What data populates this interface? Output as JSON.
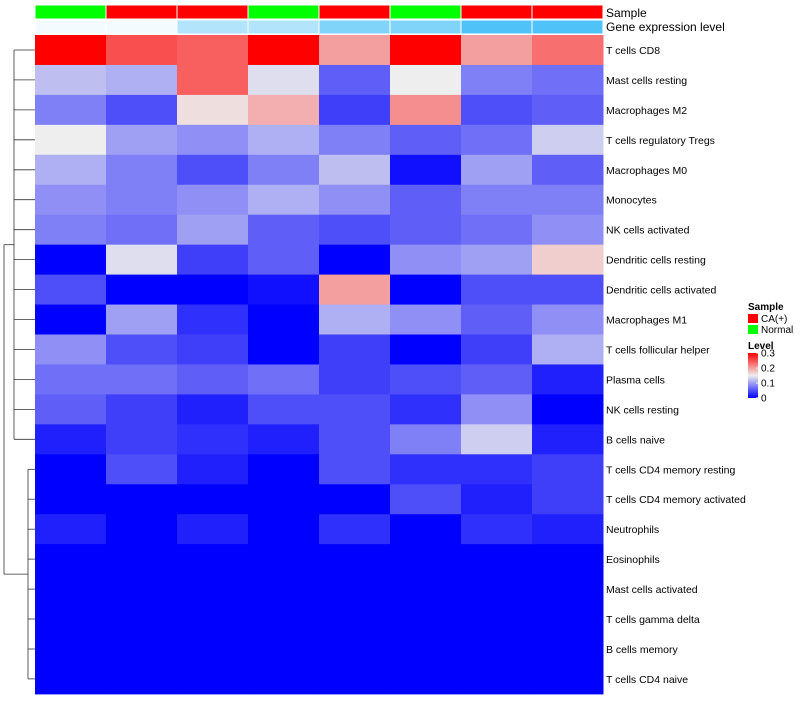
{
  "chart_data": {
    "type": "heatmap",
    "title": "",
    "annotation_tracks": [
      {
        "name": "Sample",
        "values": [
          "Normal",
          "CA(+)",
          "CA(+)",
          "Normal",
          "CA(+)",
          "Normal",
          "CA(+)",
          "CA(+)"
        ],
        "colors": {
          "CA(+)": "#ff0000",
          "Normal": "#00ff00"
        }
      },
      {
        "name": "Gene expression level",
        "values": [
          0.0,
          0.0,
          0.4,
          0.4,
          0.7,
          0.7,
          1.0,
          1.0
        ],
        "color_low": "#f4fbfe",
        "color_high": "#4fc3f7"
      }
    ],
    "rows": [
      "T cells CD8",
      "Mast cells resting",
      "Macrophages M2",
      "T cells regulatory  Tregs",
      "Macrophages M0",
      "Monocytes",
      "NK cells activated",
      "Dendritic cells resting",
      "Dendritic cells activated",
      "Macrophages M1",
      "T cells follicular helper",
      "Plasma cells",
      "NK cells resting",
      "B cells naive",
      "T cells CD4 memory resting",
      "T cells CD4 memory activated",
      "Neutrophils",
      "Eosinophils",
      "Mast cells activated",
      "T cells gamma delta",
      "B cells memory",
      "T cells CD4 naive"
    ],
    "columns": 8,
    "values": [
      [
        0.3,
        0.25,
        0.24,
        0.3,
        0.2,
        0.3,
        0.2,
        0.23
      ],
      [
        0.12,
        0.11,
        0.24,
        0.14,
        0.06,
        0.15,
        0.08,
        0.07
      ],
      [
        0.08,
        0.05,
        0.16,
        0.19,
        0.04,
        0.21,
        0.05,
        0.06
      ],
      [
        0.15,
        0.1,
        0.09,
        0.11,
        0.08,
        0.06,
        0.07,
        0.13
      ],
      [
        0.11,
        0.08,
        0.05,
        0.08,
        0.12,
        0.01,
        0.1,
        0.06
      ],
      [
        0.09,
        0.08,
        0.09,
        0.11,
        0.09,
        0.06,
        0.08,
        0.08
      ],
      [
        0.08,
        0.07,
        0.1,
        0.06,
        0.05,
        0.06,
        0.07,
        0.09
      ],
      [
        0.0,
        0.14,
        0.04,
        0.06,
        0.0,
        0.09,
        0.1,
        0.17
      ],
      [
        0.05,
        0.0,
        0.0,
        0.01,
        0.2,
        0.0,
        0.05,
        0.05
      ],
      [
        0.0,
        0.1,
        0.03,
        0.0,
        0.11,
        0.09,
        0.06,
        0.09
      ],
      [
        0.09,
        0.05,
        0.04,
        0.0,
        0.04,
        0.0,
        0.04,
        0.11
      ],
      [
        0.07,
        0.07,
        0.06,
        0.07,
        0.04,
        0.05,
        0.06,
        0.02
      ],
      [
        0.06,
        0.04,
        0.02,
        0.05,
        0.05,
        0.03,
        0.09,
        0.0
      ],
      [
        0.02,
        0.04,
        0.03,
        0.02,
        0.05,
        0.08,
        0.13,
        0.02
      ],
      [
        0.0,
        0.05,
        0.02,
        0.0,
        0.05,
        0.03,
        0.03,
        0.04
      ],
      [
        0.0,
        0.0,
        0.0,
        0.0,
        0.0,
        0.05,
        0.02,
        0.04
      ],
      [
        0.02,
        0.0,
        0.02,
        0.0,
        0.03,
        0.0,
        0.03,
        0.02
      ],
      [
        0.0,
        0.0,
        0.0,
        0.0,
        0.0,
        0.0,
        0.0,
        0.0
      ],
      [
        0.0,
        0.0,
        0.0,
        0.0,
        0.0,
        0.0,
        0.0,
        0.0
      ],
      [
        0.0,
        0.0,
        0.0,
        0.0,
        0.0,
        0.0,
        0.0,
        0.0
      ],
      [
        0.0,
        0.0,
        0.0,
        0.0,
        0.0,
        0.0,
        0.0,
        0.0
      ],
      [
        0.0,
        0.0,
        0.0,
        0.0,
        0.0,
        0.0,
        0.0,
        0.0
      ]
    ],
    "color_scale": {
      "min": 0,
      "mid": 0.15,
      "max": 0.3,
      "low": "#0000ff",
      "middle": "#eeeeee",
      "high": "#ff0000"
    },
    "legend": {
      "position": "right",
      "sample_title": "Sample",
      "sample_entries": [
        "CA(+)",
        "Normal"
      ],
      "level_title": "Level",
      "level_ticks": [
        "0.3",
        "0.2",
        "0.1",
        "0"
      ]
    },
    "row_dendrogram": true
  }
}
